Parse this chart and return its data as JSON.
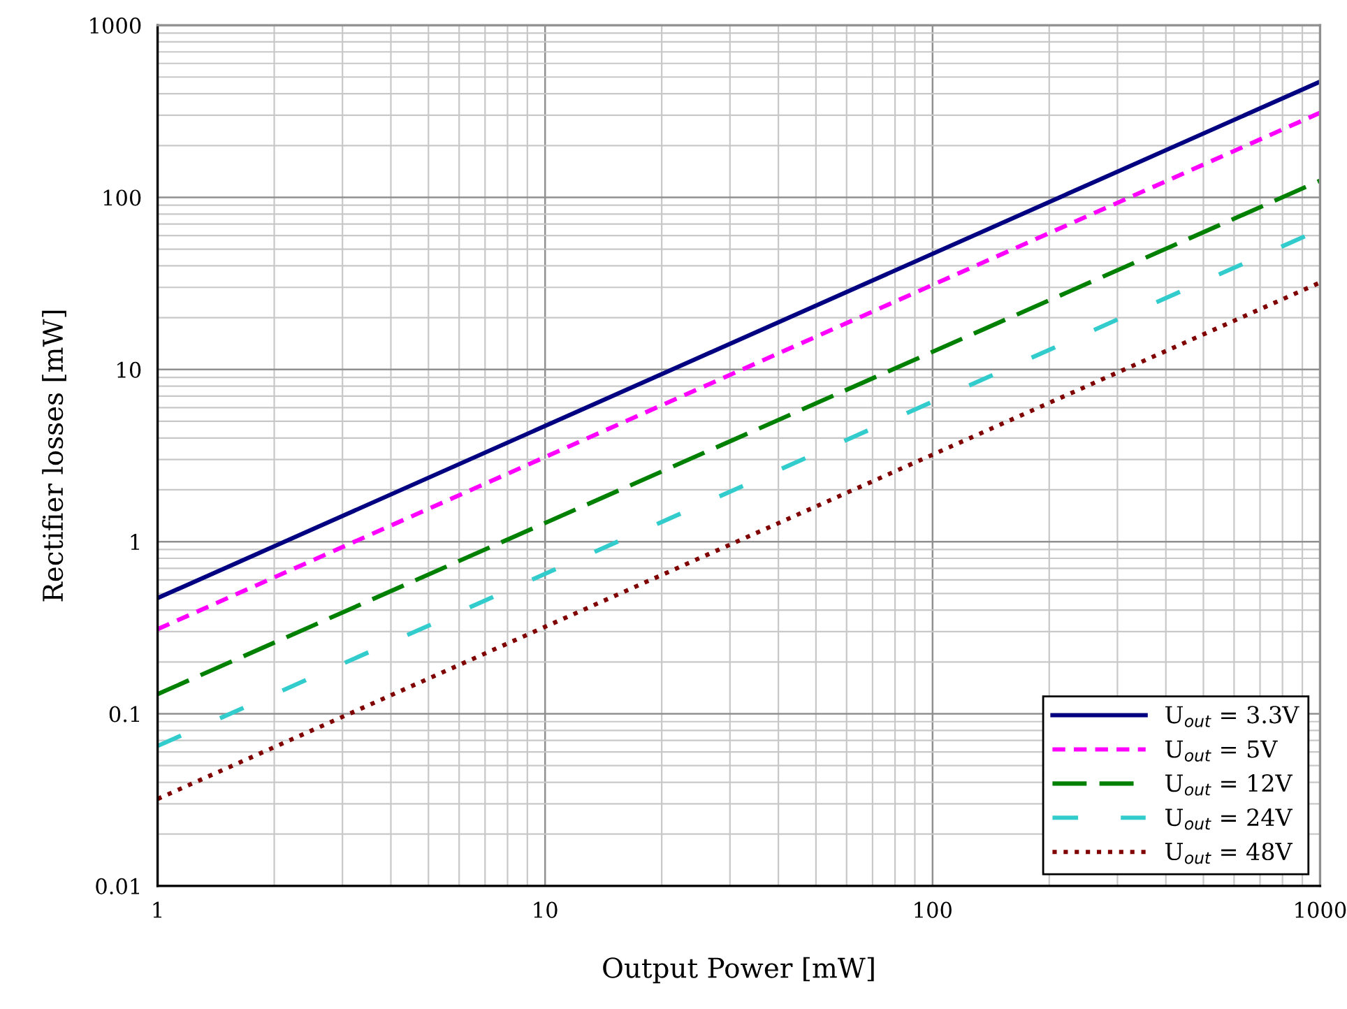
{
  "chart_data": {
    "type": "line",
    "xlabel": "Output Power [mW]",
    "ylabel": "Rectifier losses [mW]",
    "log": "xy",
    "x": [
      1,
      1000
    ],
    "xlim": [
      1,
      1000
    ],
    "xticks": [
      1,
      10,
      100,
      1000
    ],
    "ylim": [
      0.01,
      1000
    ],
    "yticks": [
      0.01,
      0.1,
      1,
      10,
      100,
      1000
    ],
    "grid": true,
    "legend": "bottom right",
    "marker": "none",
    "series": [
      {
        "name": "U$_{out}$ = 3.3V",
        "color": "#000080",
        "values": [
          0.47,
          470
        ],
        "line_style": "solid"
      },
      {
        "name": "U$_{out}$ = 5V",
        "color": "#ff00ff",
        "values": [
          0.31,
          310
        ],
        "line_style": "dashed"
      },
      {
        "name": "U$_{out}$ = 12V",
        "color": "#008000",
        "values": [
          0.13,
          125
        ],
        "line_style": "dashed"
      },
      {
        "name": "U$_{out}$ = 24V",
        "color": "#33cccc",
        "values": [
          0.065,
          65
        ],
        "line_style": "dashed"
      },
      {
        "name": "U$_{out}$ = 48V",
        "color": "#800000",
        "values": [
          0.032,
          32
        ],
        "line_style": "dotted"
      }
    ]
  }
}
